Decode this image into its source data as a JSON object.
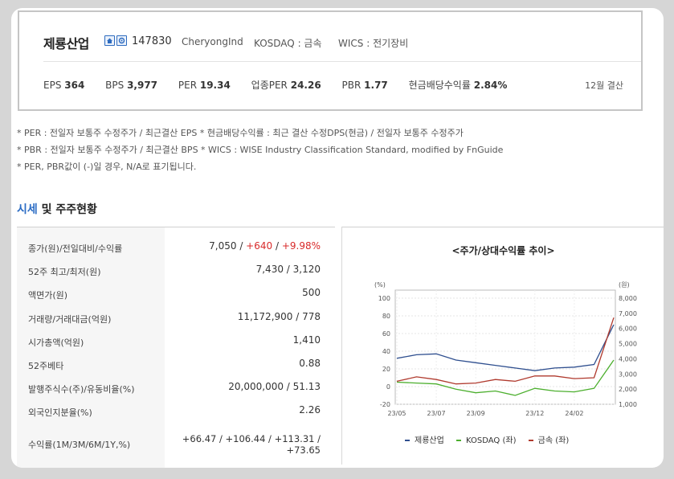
{
  "company": {
    "name": "제룡산업",
    "code": "147830",
    "english_name": "CheryongInd",
    "market": "KOSDAQ : 금속",
    "wics": "WICS : 전기장비",
    "icons": [
      "home-icon",
      "disclosure-icon"
    ]
  },
  "stats": [
    {
      "label": "EPS",
      "value": "364"
    },
    {
      "label": "BPS",
      "value": "3,977"
    },
    {
      "label": "PER",
      "value": "19.34"
    },
    {
      "label": "업종PER",
      "value": "24.26"
    },
    {
      "label": "PBR",
      "value": "1.77"
    },
    {
      "label": "현금배당수익률",
      "value": "2.84%"
    }
  ],
  "settlement": "12월 결산",
  "notes": [
    "* PER : 전일자 보통주 수정주가 / 최근결산 EPS * 현금배당수익률 : 최근 결산 수정DPS(현금) / 전일자 보통주 수정주가",
    "* PBR : 전일자 보통주 수정주가 / 최근결산 BPS * WICS : WISE Industry Classification Standard, modified by FnGuide",
    "* PER, PBR값이 (-)일 경우, N/A로 표기됩니다."
  ],
  "section": {
    "title_blue": "시세",
    "title_rest": " 및 주주현황"
  },
  "table": {
    "rows": [
      {
        "label": "종가(원)/전일대비/수익률",
        "v1": "7,050",
        "sep1": " / ",
        "v2": "+640",
        "sep2": " / ",
        "v3": "+9.98%"
      },
      {
        "label": "52주 최고/최저(원)",
        "value": "7,430 / 3,120"
      },
      {
        "label": "액면가(원)",
        "value": "500"
      },
      {
        "label": "거래량/거래대금(억원)",
        "value": "11,172,900 / 778"
      },
      {
        "label": "시가총액(억원)",
        "value": "1,410"
      },
      {
        "label": "52주베타",
        "value": "0.88"
      },
      {
        "label": "발행주식수(주)/유동비율(%)",
        "value": "20,000,000 / 51.13"
      },
      {
        "label": "외국인지분율(%)",
        "value": "2.26"
      },
      {
        "label": "수익률(1M/3M/6M/1Y,%)",
        "line1": "+66.47 / +106.44 / +113.31 /",
        "line2": "+73.65"
      }
    ]
  },
  "chart_data": {
    "type": "line",
    "title": "<주가/상대수익률 추이>",
    "left_axis_unit": "(%)",
    "right_axis_unit": "(원)",
    "left_ylim": [
      -20,
      100
    ],
    "right_ylim": [
      1000,
      8000
    ],
    "left_ticks": [
      "100",
      "80",
      "60",
      "40",
      "20",
      "0",
      "-20"
    ],
    "right_ticks": [
      "8,000",
      "7,000",
      "6,000",
      "5,000",
      "4,000",
      "3,000",
      "2,000",
      "1,000"
    ],
    "x_ticks": [
      "23/05",
      "23/07",
      "23/09",
      "23/12",
      "24/02"
    ],
    "x": [
      "23/05",
      "23/06",
      "23/07",
      "23/08",
      "23/09",
      "23/10",
      "23/11",
      "23/12",
      "24/01",
      "24/02",
      "24/03",
      "24/04"
    ],
    "series": [
      {
        "name": "제룡산업",
        "axis": "left",
        "color": "#2f4f8f",
        "values": [
          32,
          36,
          37,
          30,
          27,
          24,
          21,
          18,
          21,
          22,
          25,
          70
        ]
      },
      {
        "name": "KOSDAQ (좌)",
        "axis": "left",
        "color": "#4caf2e",
        "values": [
          5,
          4,
          3,
          -3,
          -7,
          -5,
          -10,
          -2,
          -5,
          -6,
          -2,
          30
        ]
      },
      {
        "name": "금속 (좌)",
        "axis": "left",
        "color": "#b03a2e",
        "values": [
          6,
          11,
          8,
          3,
          4,
          8,
          6,
          12,
          12,
          9,
          10,
          78
        ]
      }
    ],
    "legend_position": "bottom",
    "grid": true
  }
}
